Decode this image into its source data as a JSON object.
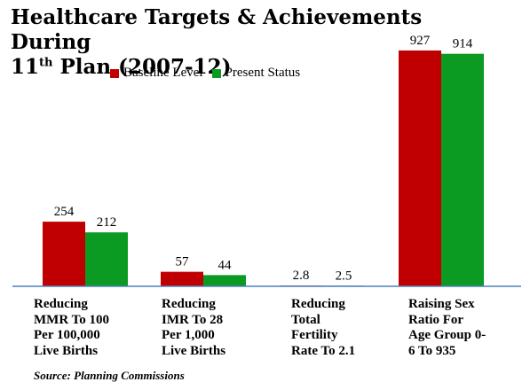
{
  "chart_data": {
    "type": "bar",
    "title_main": "Healthcare Targets & Achievements During",
    "title_line2_prefix": "11",
    "title_line2_sup": "th",
    "title_line2_suffix": " Plan (2007-12)",
    "categories": [
      "Reducing\nMMR To 100\nPer 100,000\nLive Births",
      "Reducing\nIMR To 28\nPer 1,000\nLive Births",
      "Reducing\nTotal\nFertility\nRate To 2.1",
      "Raising Sex\nRatio For\nAge Group 0-\n6 To 935"
    ],
    "series": [
      {
        "name": "Baseline Level",
        "color": "#c00000",
        "values": [
          254,
          57,
          2.8,
          927
        ],
        "labels": [
          "254",
          "57",
          "2.8",
          "927"
        ]
      },
      {
        "name": "Present Status",
        "color": "#0b9a22",
        "values": [
          212,
          44,
          2.5,
          914
        ],
        "labels": [
          "212",
          "44",
          "2.5",
          "914"
        ]
      }
    ],
    "ylim": [
      0,
      1000
    ],
    "grid": false,
    "legend_position": "top",
    "source": "Source: Planning Commissions"
  }
}
